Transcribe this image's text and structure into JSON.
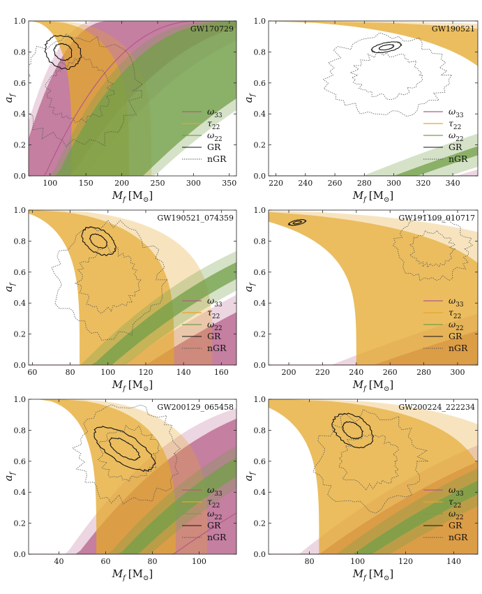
{
  "figure": {
    "colors": {
      "omega33": "#b35a86",
      "tau22": "#e4a72a",
      "omega22": "#73a048",
      "gr": "#111111",
      "ngr": "#555555"
    },
    "legend": {
      "entries": [
        {
          "key": "omega33",
          "label": "ω",
          "sub": "33",
          "style": "line"
        },
        {
          "key": "tau22",
          "label": "τ",
          "sub": "22",
          "style": "line"
        },
        {
          "key": "omega22",
          "label": "ω",
          "sub": "22",
          "style": "line"
        },
        {
          "key": "gr",
          "label": "GR",
          "sub": "",
          "style": "solid"
        },
        {
          "key": "ngr",
          "label": "nGR",
          "sub": "",
          "style": "dotted"
        }
      ],
      "placement": "lower-right"
    }
  },
  "chart_data": [
    {
      "type": "area",
      "event": "GW170729",
      "xlabel_main": "M",
      "xlabel_sub": "f",
      "xlabel_unit_open": "[M",
      "xlabel_unit_sub": "⊙",
      "xlabel_unit_close": "]",
      "ylabel_main": "a",
      "ylabel_sub": "f",
      "xlim": [
        70,
        360
      ],
      "ylim": [
        0,
        1
      ],
      "xticks": [
        100,
        150,
        200,
        250,
        300,
        350
      ],
      "yticks": [
        0.0,
        0.2,
        0.4,
        0.6,
        0.8,
        1.0
      ],
      "bands": {
        "omega33": [
          55,
          130
        ],
        "tau22": [
          130,
          210
        ],
        "omega22": [
          110,
          230
        ]
      },
      "gr_contours": {
        "center": [
          118,
          0.8
        ],
        "r": [
          22,
          0.12
        ]
      },
      "ngr_contours": {
        "center": [
          140,
          0.55
        ],
        "r": [
          80,
          0.35
        ]
      }
    },
    {
      "type": "area",
      "event": "GW190521",
      "xlabel_main": "M",
      "xlabel_sub": "f",
      "xlabel_unit_open": "[M",
      "xlabel_unit_sub": "⊙",
      "xlabel_unit_close": "]",
      "ylabel_main": "a",
      "ylabel_sub": "f",
      "xlim": [
        215,
        357
      ],
      "ylim": [
        0,
        1
      ],
      "xticks": [
        220,
        240,
        260,
        280,
        300,
        320,
        340
      ],
      "yticks": [
        0.0,
        0.2,
        0.4,
        0.6,
        0.8,
        1.0
      ],
      "bands": {
        "omega33": [
          380,
          760
        ],
        "tau22": [
          380,
          520
        ],
        "omega22": [
          300,
          316
        ]
      },
      "gr_contours": {
        "center": [
          295,
          0.83
        ],
        "r": [
          10,
          0.03
        ]
      },
      "ngr_contours": {
        "center": [
          295,
          0.65
        ],
        "r": [
          40,
          0.25
        ]
      }
    },
    {
      "type": "area",
      "event": "GW190521_074359",
      "xlabel_main": "M",
      "xlabel_sub": "f",
      "xlabel_unit_open": "[M",
      "xlabel_unit_sub": "⊙",
      "xlabel_unit_close": "]",
      "ylabel_main": "a",
      "ylabel_sub": "f",
      "xlim": [
        58,
        168
      ],
      "ylim": [
        0,
        1
      ],
      "xticks": [
        60,
        80,
        100,
        120,
        140,
        160
      ],
      "yticks": [
        0.0,
        0.2,
        0.4,
        0.6,
        0.8,
        1.0
      ],
      "bands": {
        "omega33": [
          120,
          260
        ],
        "tau22": [
          85,
          135
        ],
        "omega22": [
          92,
          102
        ]
      },
      "gr_contours": {
        "center": [
          95,
          0.8
        ],
        "r": [
          6,
          0.12
        ]
      },
      "ngr_contours": {
        "center": [
          100,
          0.55
        ],
        "r": [
          28,
          0.35
        ]
      }
    },
    {
      "type": "area",
      "event": "GW191109_010717",
      "xlabel_main": "M",
      "xlabel_sub": "f",
      "xlabel_unit_open": "[M",
      "xlabel_unit_sub": "⊙",
      "xlabel_unit_close": "]",
      "ylabel_main": "a",
      "ylabel_sub": "f",
      "xlim": [
        188,
        312
      ],
      "ylim": [
        0,
        1
      ],
      "xticks": [
        200,
        220,
        240,
        260,
        280,
        300
      ],
      "yticks": [
        0.0,
        0.2,
        0.4,
        0.6,
        0.8,
        1.0
      ],
      "bands": {
        "omega33": [
          250,
          480
        ],
        "tau22": [
          240,
          330
        ],
        "omega22": [
          330,
          380
        ]
      },
      "gr_contours": {
        "center": [
          205,
          0.92
        ],
        "r": [
          5,
          0.015
        ]
      },
      "ngr_contours": {
        "center": [
          285,
          0.75
        ],
        "r": [
          22,
          0.2
        ]
      }
    },
    {
      "type": "area",
      "event": "GW200129_065458",
      "xlabel_main": "M",
      "xlabel_sub": "f",
      "xlabel_unit_open": "[M",
      "xlabel_unit_sub": "⊙",
      "xlabel_unit_close": "]",
      "ylabel_main": "a",
      "ylabel_sub": "f",
      "xlim": [
        27,
        116
      ],
      "ylim": [
        0,
        1
      ],
      "xticks": [
        40,
        60,
        80,
        100
      ],
      "yticks": [
        0.0,
        0.2,
        0.4,
        0.6,
        0.8,
        1.0
      ],
      "bands": {
        "omega33": [
          48,
          130
        ],
        "tau22": [
          56,
          90
        ],
        "omega22": [
          66,
          74
        ]
      },
      "gr_contours": {
        "center": [
          68,
          0.68
        ],
        "r": [
          6,
          0.22
        ]
      },
      "ngr_contours": {
        "center": [
          70,
          0.65
        ],
        "r": [
          22,
          0.3
        ]
      }
    },
    {
      "type": "area",
      "event": "GW200224_222234",
      "xlabel_main": "M",
      "xlabel_sub": "f",
      "xlabel_unit_open": "[M",
      "xlabel_unit_sub": "⊙",
      "xlabel_unit_close": "]",
      "ylabel_main": "a",
      "ylabel_sub": "f",
      "xlim": [
        63,
        150
      ],
      "ylim": [
        0,
        1
      ],
      "xticks": [
        80,
        100,
        120,
        140
      ],
      "yticks": [
        0.0,
        0.2,
        0.4,
        0.6,
        0.8,
        1.0
      ],
      "bands": {
        "omega33": [
          84,
          220
        ],
        "tau22": [
          84,
          155
        ],
        "omega22": [
          98,
          106
        ]
      },
      "gr_contours": {
        "center": [
          98,
          0.8
        ],
        "r": [
          6,
          0.14
        ]
      },
      "ngr_contours": {
        "center": [
          105,
          0.6
        ],
        "r": [
          22,
          0.3
        ]
      }
    }
  ]
}
